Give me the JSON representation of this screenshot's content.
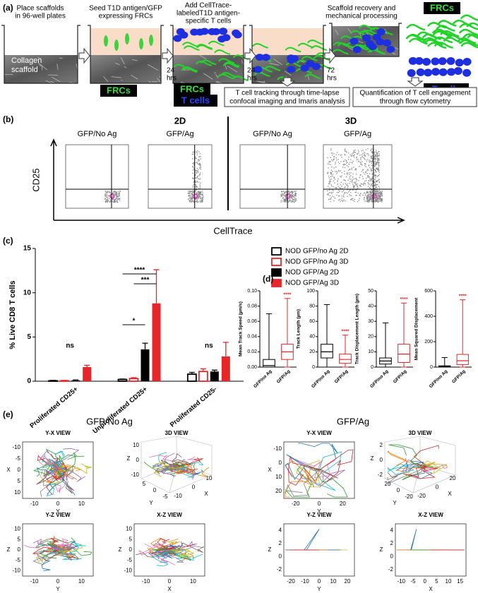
{
  "panel_a": {
    "label": "(a)",
    "captions": [
      [
        "Place scaffolds",
        "in 96-well plates"
      ],
      [
        "Seed T1D antigen/GFP",
        "expressing FRCs"
      ],
      [
        "Add CellTrace-",
        "labeledT1D antigen-",
        "specific T cells"
      ],
      [
        "Scaffold recovery and",
        "mechanical processing"
      ]
    ],
    "scaffold": [
      "Collagen",
      "scaffold"
    ],
    "times": [
      [
        "24",
        "hrs"
      ],
      [
        "24",
        "hrs"
      ],
      [
        "72",
        "hrs"
      ]
    ],
    "badges": {
      "frcs_seed": "FRCs",
      "frcs_add": "FRCs",
      "tcells_add": "T cells",
      "frcs_out": "FRCs",
      "tcells_out": "T cells"
    },
    "outputs": [
      [
        "T cell tracking through time-lapse",
        "confocal imaging and Imaris analysis"
      ],
      [
        "Quantification of T cell engagement",
        "through flow cytometry"
      ]
    ]
  },
  "panel_b": {
    "label": "(b)",
    "groups": [
      "2D",
      "3D"
    ],
    "plots": [
      "GFP/No Ag",
      "GFP/Ag",
      "GFP/No Ag",
      "GFP/Ag"
    ],
    "ylabel": "CD25",
    "xlabel": "CellTrace"
  },
  "chart_data": [
    {
      "type": "bar",
      "label": "(c)",
      "ylabel": "% Live CD8 T cells",
      "categories": [
        "Proliferated CD25+",
        "Unproliferated CD25+",
        "Proliferated CD25-"
      ],
      "series": [
        {
          "name": "NOD GFP/no Ag 2D",
          "color": "#000000",
          "filled": false,
          "values": [
            0.05,
            0.2,
            0.8
          ],
          "errors": [
            0.05,
            0.05,
            0.2
          ]
        },
        {
          "name": "NOD GFP/no Ag 3D",
          "color": "#e8262a",
          "filled": false,
          "values": [
            0.05,
            0.3,
            1.1
          ],
          "errors": [
            0.05,
            0.1,
            0.3
          ]
        },
        {
          "name": "NOD GFP/Ag 2D",
          "color": "#000000",
          "filled": true,
          "values": [
            0.1,
            3.6,
            1.1
          ],
          "errors": [
            0.05,
            0.7,
            0.15
          ]
        },
        {
          "name": "NOD GFP/Ag 3D",
          "color": "#e8262a",
          "filled": true,
          "values": [
            1.6,
            8.8,
            2.8
          ],
          "errors": [
            0.2,
            3.8,
            1.6
          ]
        }
      ],
      "annotations": [
        "ns",
        "*",
        "****",
        "***",
        "ns"
      ],
      "ylim": [
        0,
        15
      ],
      "yticks": [
        0,
        5,
        10,
        15
      ]
    },
    {
      "type": "box",
      "label": "(d)",
      "ylabel": "Mean Track Speed (µm/s)",
      "categories": [
        "GFP/no Ag",
        "GFP/Ag"
      ],
      "colors": [
        "#000000",
        "#e8262a"
      ],
      "boxes": [
        {
          "min": 0,
          "q1": 0,
          "median": 0.002,
          "q3": 0.01,
          "max": 0.07
        },
        {
          "min": 0,
          "q1": 0.01,
          "median": 0.02,
          "q3": 0.03,
          "max": 0.09
        }
      ],
      "annotation": "****",
      "ylim": [
        0,
        0.1
      ],
      "yticks": [
        {
          "value": 0,
          "label": "0.00"
        },
        0.02,
        0.04,
        0.06,
        0.08,
        {
          "value": 0.1,
          "label": "0.10"
        }
      ]
    },
    {
      "type": "box",
      "ylabel": "Track Length (µm)",
      "categories": [
        "GFP/no Ag",
        "GFP/Ag"
      ],
      "colors": [
        "#000000",
        "#e8262a"
      ],
      "boxes": [
        {
          "min": 0,
          "q1": 12,
          "median": 20,
          "q3": 30,
          "max": 82
        },
        {
          "min": 0,
          "q1": 5,
          "median": 10,
          "q3": 17,
          "max": 42
        }
      ],
      "annotation": "****",
      "ylim": [
        0,
        100
      ],
      "yticks": [
        0,
        20,
        40,
        60,
        80,
        100
      ]
    },
    {
      "type": "box",
      "ylabel": "Track Displacement Length (µm)",
      "categories": [
        "GFP/no Ag",
        "GFP/Ag"
      ],
      "colors": [
        "#000000",
        "#e8262a"
      ],
      "boxes": [
        {
          "min": 0,
          "q1": 2,
          "median": 4,
          "q3": 6,
          "max": 29
        },
        {
          "min": 0,
          "q1": 3,
          "median": 8.5,
          "q3": 15,
          "max": 42
        }
      ],
      "annotation": "****",
      "ylim": [
        0,
        50
      ],
      "yticks": [
        0,
        10,
        20,
        30,
        40,
        50
      ]
    },
    {
      "type": "box",
      "ylabel": "Mean Squared Displacement",
      "categories": [
        "GFP/no Ag",
        "GFP/Ag"
      ],
      "colors": [
        "#000000",
        "#e8262a"
      ],
      "boxes": [
        {
          "min": 0,
          "q1": 0,
          "median": 5,
          "q3": 10,
          "max": 75
        },
        {
          "min": 0,
          "q1": 20,
          "median": 50,
          "q3": 100,
          "max": 530
        }
      ],
      "annotation": "****",
      "ylim": [
        0,
        600
      ],
      "yticks": [
        0,
        200,
        400,
        600
      ]
    }
  ],
  "panel_e": {
    "label": "(e)",
    "groups": [
      {
        "title": "GFP/No Ag",
        "views": [
          {
            "title": "Y-X VIEW",
            "xlabel": "Y",
            "ylabel": "X",
            "xticks": [
              "-10",
              "0",
              "10"
            ],
            "yticks": [
              "-10",
              "-5",
              "0",
              "5",
              "10"
            ]
          },
          {
            "title": "3D VIEW",
            "zlabel": "Z",
            "ylabel": "Y",
            "xlabel": "X",
            "zticks": [
              "10",
              "0",
              "-10"
            ],
            "yticks": [
              "5",
              "0",
              "-5"
            ],
            "xticks": [
              "-10",
              "0",
              "10"
            ]
          },
          {
            "title": "Y-Z VIEW",
            "xlabel": "Y",
            "ylabel": "Z",
            "xticks": [
              "-10",
              "0",
              "10"
            ],
            "yticks": [
              "10",
              "5",
              "0",
              "-5",
              "-10"
            ]
          },
          {
            "title": "X-Z VIEW",
            "xlabel": "X",
            "ylabel": "Z",
            "xticks": [
              "-10",
              "0",
              "10"
            ],
            "yticks": [
              "10",
              "5",
              "0",
              "-5",
              "-10"
            ]
          }
        ]
      },
      {
        "title": "GFP/Ag",
        "views": [
          {
            "title": "Y-X VIEW",
            "xlabel": "Y",
            "ylabel": "X",
            "xticks": [
              "-20",
              "0",
              "20"
            ],
            "yticks": [
              "-10",
              "0",
              "10",
              "20"
            ]
          },
          {
            "title": "3D VIEW",
            "zlabel": "Z",
            "ylabel": "Y",
            "xlabel": "X",
            "zticks": [
              "2",
              "0",
              "-2"
            ],
            "yticks": [
              "20",
              "0",
              "-20"
            ],
            "xticks": [
              "-20",
              "0",
              "20"
            ]
          },
          {
            "title": "Y-Z VIEW",
            "xlabel": "Y",
            "ylabel": "Z",
            "xticks": [
              "-20",
              "-10",
              "0",
              "10",
              "20"
            ],
            "yticks": [
              "4",
              "2",
              "0",
              "-2"
            ]
          },
          {
            "title": "X-Z VIEW",
            "xlabel": "X",
            "ylabel": "Z",
            "xticks": [
              "-10",
              "-5",
              "0",
              "5",
              "10",
              "15"
            ],
            "yticks": [
              "4",
              "2",
              "0",
              "-2"
            ]
          }
        ]
      }
    ]
  }
}
